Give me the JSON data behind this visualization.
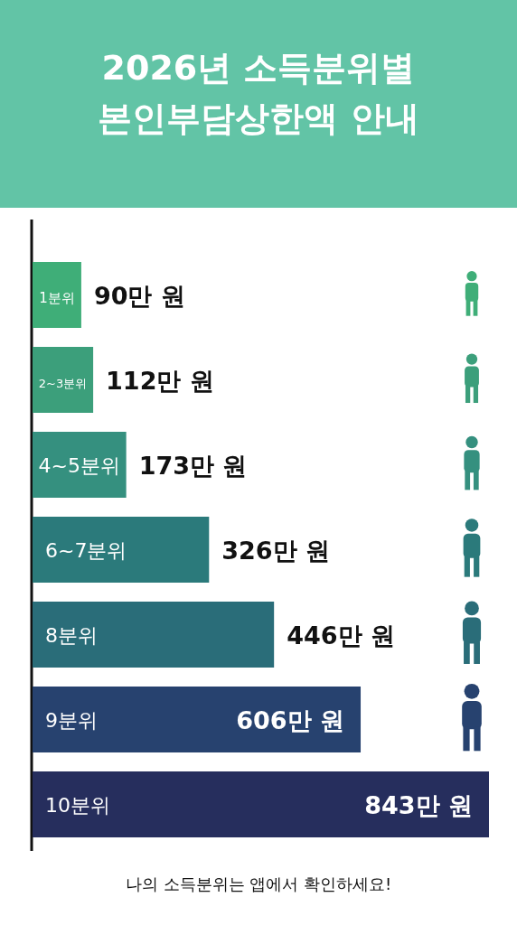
{
  "chart_data": {
    "type": "bar",
    "orientation": "horizontal",
    "title": "2026년 소득분위별 본인부담상한액 안내",
    "categories": [
      "1분위",
      "2~3분위",
      "4~5분위",
      "6~7분위",
      "8분위",
      "9분위",
      "10분위"
    ],
    "values": [
      90,
      112,
      173,
      326,
      446,
      606,
      843
    ],
    "value_labels": [
      "90만 원",
      "112만 원",
      "173만 원",
      "326만 원",
      "446만 원",
      "606만 원",
      "843만 원"
    ],
    "colors": [
      "#3fae78",
      "#3c9f7b",
      "#35907f",
      "#2b7a7b",
      "#2a6d79",
      "#27426f",
      "#262e5d"
    ],
    "annotations": [
      "나의 소득분위는 앱에서 확인하세요!"
    ]
  }
}
